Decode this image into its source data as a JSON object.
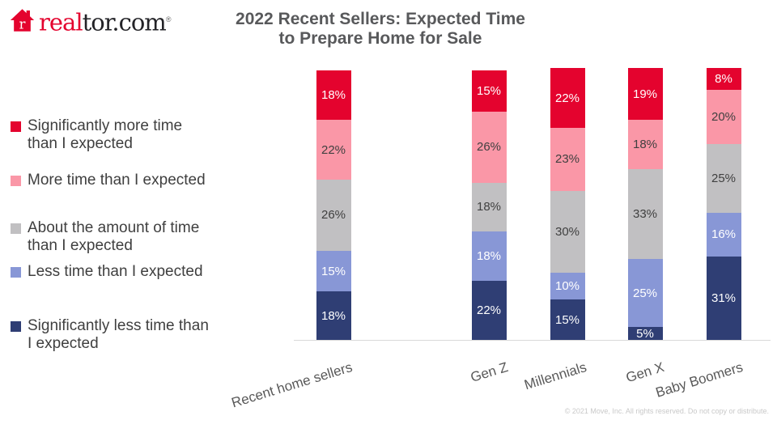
{
  "logo": {
    "icon": "house-r-icon",
    "red_text": "real",
    "dark_text": "tor.com",
    "trademark": "®"
  },
  "title": {
    "line1": "2022 Recent Sellers: Expected Time",
    "line2": "to Prepare Home for Sale"
  },
  "footer": {
    "copyright": "© 2021 Move, Inc. All rights reserved. Do not copy or distribute."
  },
  "colors": {
    "brand_red": "#E4032E",
    "pink": "#FA97A7",
    "gray": "#C1C0C2",
    "periwinkle": "#8897D6",
    "navy": "#2F3E74",
    "title_text": "#58595B",
    "legend_text": "#3F3F3F",
    "axis_line": "#D9D9D9"
  },
  "chart_data": {
    "type": "bar",
    "stacked": true,
    "orientation": "vertical",
    "title": "2022 Recent Sellers: Expected Time to Prepare Home for Sale",
    "xlabel": "",
    "ylabel": "",
    "ylim": [
      0,
      100
    ],
    "grid": false,
    "legend_position": "left",
    "value_suffix": "%",
    "categories": [
      "Recent home sellers",
      "Gen Z",
      "Millennials",
      "Gen X",
      "Baby Boomers"
    ],
    "series": [
      {
        "name": "Significantly more time\nthan I expected",
        "color": "#E4032E",
        "text_color": "#FFFFFF",
        "values": [
          18,
          15,
          22,
          19,
          8
        ]
      },
      {
        "name": "More time than I expected",
        "color": "#FA97A7",
        "text_color": "#404040",
        "values": [
          22,
          26,
          23,
          18,
          20
        ]
      },
      {
        "name": "About the amount of time\nthan I expected",
        "color": "#C1C0C2",
        "text_color": "#404040",
        "values": [
          26,
          18,
          30,
          33,
          25
        ]
      },
      {
        "name": "Less time than I expected",
        "color": "#8897D6",
        "text_color": "#FFFFFF",
        "values": [
          15,
          18,
          10,
          25,
          16
        ]
      },
      {
        "name": "Significantly less time than\nI expected",
        "color": "#2F3E74",
        "text_color": "#FFFFFF",
        "values": [
          18,
          22,
          15,
          5,
          31
        ]
      }
    ]
  }
}
